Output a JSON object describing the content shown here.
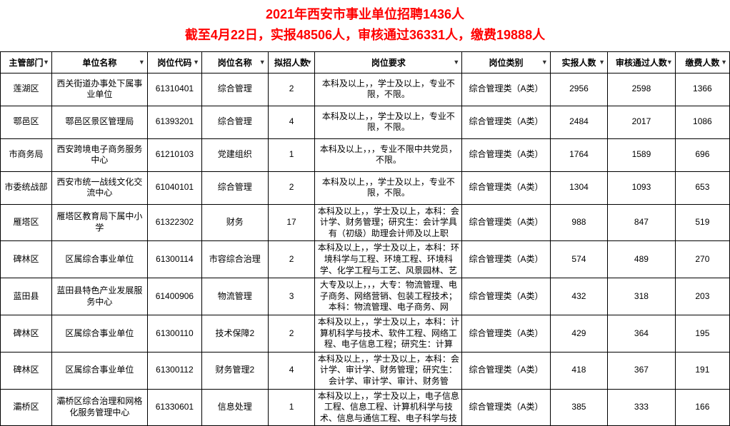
{
  "title": {
    "line1": "2021年西安市事业单位招聘1436人",
    "line2": "截至4月22日，实报48506人，审核通过36331人，缴费19888人"
  },
  "columns": [
    "主管部门",
    "单位名称",
    "岗位代码",
    "岗位名称",
    "拟招人数",
    "岗位要求",
    "岗位类别",
    "实报人数",
    "审核通过人数",
    "缴费人数"
  ],
  "column_classes": [
    "col-dept",
    "col-unit",
    "col-code",
    "col-pos",
    "col-plan",
    "col-req",
    "col-cat",
    "col-applied",
    "col-approved",
    "col-paid"
  ],
  "rows": [
    {
      "dept": "莲湖区",
      "unit": "西关街道办事处下属事业单位",
      "code": "61310401",
      "pos": "综合管理",
      "plan": "2",
      "req": "本科及以上，，学士及以上，专业不限，不限。",
      "cat": "综合管理类（A类）",
      "applied": "2956",
      "approved": "2598",
      "paid": "1366"
    },
    {
      "dept": "鄠邑区",
      "unit": "鄠邑区景区管理局",
      "code": "61393201",
      "pos": "综合管理",
      "plan": "4",
      "req": "本科及以上，，学士及以上，专业不限，不限。",
      "cat": "综合管理类（A类）",
      "applied": "2484",
      "approved": "2017",
      "paid": "1086"
    },
    {
      "dept": "市商务局",
      "unit": "西安跨境电子商务服务中心",
      "code": "61210103",
      "pos": "党建组织",
      "plan": "1",
      "req": "本科及以上，，，专业不限中共党员，不限。",
      "cat": "综合管理类（A类）",
      "applied": "1764",
      "approved": "1589",
      "paid": "696"
    },
    {
      "dept": "市委统战部",
      "unit": "西安市统一战线文化交流中心",
      "code": "61040101",
      "pos": "综合管理",
      "plan": "2",
      "req": "本科及以上，，学士及以上，专业不限，不限。",
      "cat": "综合管理类（A类）",
      "applied": "1304",
      "approved": "1093",
      "paid": "653"
    },
    {
      "dept": "雁塔区",
      "unit": "雁塔区教育局下属中小学",
      "code": "61322302",
      "pos": "财务",
      "plan": "17",
      "req": "本科及以上，，学士及以上，本科：会计学、财务管理；研究生：会计学具有（初级）助理会计师及以上职",
      "cat": "综合管理类（A类）",
      "applied": "988",
      "approved": "847",
      "paid": "519"
    },
    {
      "dept": "碑林区",
      "unit": "区属综合事业单位",
      "code": "61300114",
      "pos": "市容综合治理",
      "plan": "2",
      "req": "本科及以上，，学士及以上，本科：环境科学与工程、环境工程、环境科学、化学工程与工艺、风景园林、艺",
      "cat": "综合管理类（A类）",
      "applied": "574",
      "approved": "489",
      "paid": "270"
    },
    {
      "dept": "蓝田县",
      "unit": "蓝田县特色产业发展服务中心",
      "code": "61400906",
      "pos": "物流管理",
      "plan": "3",
      "req": "大专及以上，，，大专：物流管理、电子商务、网络营销、包装工程技术；本科：物流管理、电子商务、网",
      "cat": "综合管理类（A类）",
      "applied": "432",
      "approved": "318",
      "paid": "203"
    },
    {
      "dept": "碑林区",
      "unit": "区属综合事业单位",
      "code": "61300110",
      "pos": "技术保障2",
      "plan": "2",
      "req": "本科及以上，，学士及以上，本科：计算机科学与技术、软件工程、网络工程、电子信息工程；研究生：计算",
      "cat": "综合管理类（A类）",
      "applied": "429",
      "approved": "364",
      "paid": "195"
    },
    {
      "dept": "碑林区",
      "unit": "区属综合事业单位",
      "code": "61300112",
      "pos": "财务管理2",
      "plan": "4",
      "req": "本科及以上，，学士及以上，本科：会计学、审计学、财务管理；研究生：会计学、审计学、审计、财务管",
      "cat": "综合管理类（A类）",
      "applied": "418",
      "approved": "367",
      "paid": "191"
    },
    {
      "dept": "灞桥区",
      "unit": "灞桥区综合治理和网格化服务管理中心",
      "code": "61330601",
      "pos": "信息处理",
      "plan": "1",
      "req": "本科及以上，，学士及以上，电子信息工程、信息工程、计算机科学与技术、信息与通信工程、电子科学与技",
      "cat": "综合管理类（A类）",
      "applied": "385",
      "approved": "333",
      "paid": "166"
    }
  ],
  "style": {
    "title_color": "#ff0000",
    "border_color": "#000000",
    "font_family": "Microsoft YaHei",
    "header_fontsize": 12,
    "cell_fontsize": 12,
    "title_fontsize": 18
  }
}
